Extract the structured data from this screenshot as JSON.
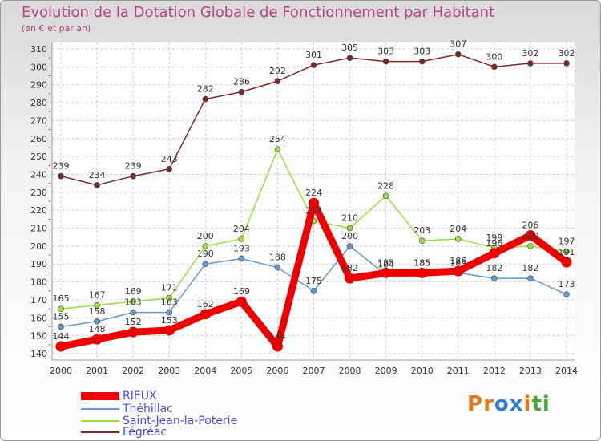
{
  "title": "Evolution de la Dotation Globale de Fonctionnement par Habitant",
  "subtitle": "(en € et par an)",
  "logo_text": "Proxiti",
  "colors": {
    "title": "#b5467d",
    "rieux": "#ee0000",
    "thehillac": "#6699cc",
    "saint_jean": "#99dd44",
    "fegreac": "#7a2a2a",
    "grid": "#cccccc",
    "axis_tick_mark": "#ff0000"
  },
  "chart_data": {
    "type": "line",
    "title": "Evolution de la Dotation Globale de Fonctionnement par Habitant",
    "subtitle": "(en € et par an)",
    "xlabel": "",
    "ylabel": "",
    "ylim": [
      140,
      310
    ],
    "ytick_step": 10,
    "grid": true,
    "legend_position": "bottom-left",
    "categories": [
      "2000",
      "2001",
      "2002",
      "2003",
      "2004",
      "2005",
      "2006",
      "2007",
      "2008",
      "2009",
      "2010",
      "2011",
      "2012",
      "2013",
      "2014"
    ],
    "series": [
      {
        "name": "Fégréac",
        "color": "#7a2a2a",
        "values": [
          239,
          234,
          239,
          243,
          282,
          286,
          292,
          301,
          305,
          303,
          303,
          307,
          300,
          302,
          302
        ]
      },
      {
        "name": "Saint-Jean-la-Poterie",
        "color": "#99dd44",
        "values": [
          165,
          167,
          169,
          171,
          200,
          204,
          254,
          214,
          210,
          228,
          203,
          204,
          199,
          200,
          197
        ]
      },
      {
        "name": "Théhillac",
        "color": "#6699cc",
        "values": [
          155,
          158,
          163,
          163,
          190,
          193,
          188,
          175,
          200,
          184,
          185,
          185,
          182,
          182,
          173
        ]
      },
      {
        "name": "RIEUX",
        "color": "#ee0000",
        "values": [
          144,
          148,
          152,
          153,
          162,
          169,
          144,
          224,
          182,
          185,
          185,
          186,
          196,
          206,
          191
        ]
      }
    ],
    "data_labels": [
      [
        "239",
        "234",
        "239",
        "243",
        "282",
        "286",
        "292",
        "301",
        "305",
        "303",
        "303",
        "307",
        "300",
        "302",
        "302"
      ],
      [
        "165",
        "167",
        "169",
        "171",
        "200",
        "204",
        "254",
        "214",
        "210",
        "228",
        "203",
        "204",
        "199",
        "200",
        "197"
      ],
      [
        "155",
        "158",
        "163",
        "163",
        "190",
        "193",
        "188",
        "175",
        "200",
        "184",
        "185",
        "185",
        "182",
        "182",
        "173"
      ],
      [
        "144",
        "148",
        "152",
        "153",
        "162",
        "169",
        "144",
        "224",
        "182",
        "185",
        "185",
        "186",
        "196",
        "206",
        "191"
      ]
    ]
  },
  "legend": [
    {
      "label": "RIEUX",
      "color": "#ee0000",
      "thick": true
    },
    {
      "label": "Théhillac",
      "color": "#6699cc",
      "thick": false
    },
    {
      "label": "Saint-Jean-la-Poterie",
      "color": "#99dd44",
      "thick": false
    },
    {
      "label": "Fégréac",
      "color": "#7a2a2a",
      "thick": false
    }
  ]
}
